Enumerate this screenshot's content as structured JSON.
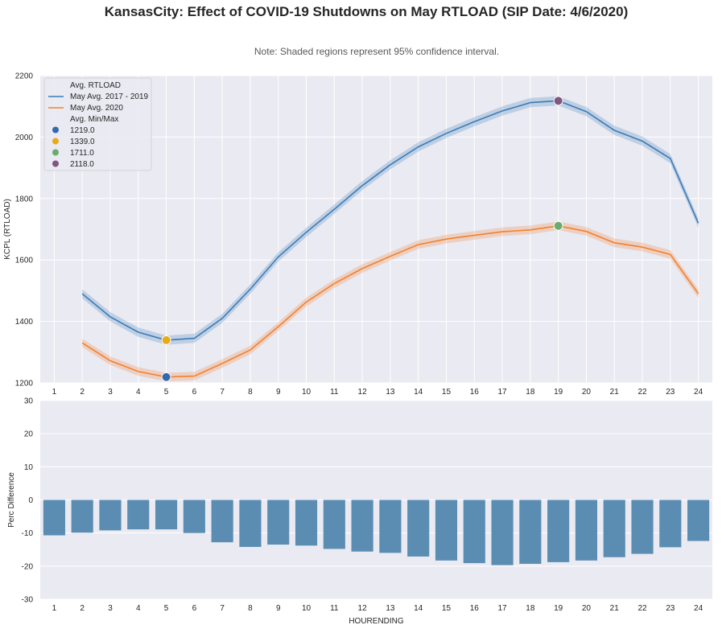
{
  "figure": {
    "title": "KansasCity: Effect of COVID-19 Shutdowns on May RTLOAD (SIP Date: 4/6/2020)",
    "note": "Note: Shaded regions represent 95% confidence interval."
  },
  "colors": {
    "background": "#eaeaf2",
    "grid": "#ffffff",
    "series_2017_2019": "#3a7cb8",
    "series_2020": "#f2812e",
    "bars": "#5b8db3",
    "min_2020": "#3569ab",
    "min_2017_2019": "#e8ab17",
    "max_2020": "#6aab6e",
    "max_2017_2019": "#7f577f"
  },
  "chart_data": [
    {
      "type": "line",
      "x": [
        2,
        3,
        4,
        5,
        6,
        7,
        8,
        9,
        10,
        11,
        12,
        13,
        14,
        15,
        16,
        17,
        18,
        19,
        20,
        21,
        22,
        23,
        24
      ],
      "series": [
        {
          "name": "May Avg. 2017 - 2019",
          "values": [
            1490,
            1415,
            1365,
            1339,
            1345,
            1410,
            1505,
            1610,
            1690,
            1765,
            1842,
            1910,
            1968,
            2012,
            2050,
            2085,
            2112,
            2118,
            2083,
            2022,
            1987,
            1930,
            1720
          ],
          "ci_halfwidth": 15
        },
        {
          "name": "May Avg. 2020",
          "values": [
            1330,
            1272,
            1237,
            1219,
            1222,
            1263,
            1307,
            1383,
            1463,
            1523,
            1572,
            1612,
            1650,
            1668,
            1680,
            1692,
            1698,
            1711,
            1693,
            1656,
            1642,
            1618,
            1490
          ],
          "ci_halfwidth": 14
        }
      ],
      "markers": [
        {
          "label": "1219.0",
          "x": 5,
          "y": 1219
        },
        {
          "label": "1339.0",
          "x": 5,
          "y": 1339
        },
        {
          "label": "1711.0",
          "x": 19,
          "y": 1711
        },
        {
          "label": "2118.0",
          "x": 19,
          "y": 2118
        }
      ],
      "xlabel": "",
      "ylabel": "KCPL (RTLOAD)",
      "xticks": [
        "1",
        "2",
        "3",
        "4",
        "5",
        "6",
        "7",
        "8",
        "9",
        "10",
        "11",
        "12",
        "13",
        "14",
        "15",
        "16",
        "17",
        "18",
        "19",
        "20",
        "21",
        "22",
        "23",
        "24"
      ],
      "yticks": [
        "1200",
        "1400",
        "1600",
        "1800",
        "2000",
        "2200"
      ],
      "xlim": [
        0.5,
        24.5
      ],
      "ylim": [
        1200,
        2200
      ],
      "grid": true,
      "legend_placement": "top-left",
      "legend": {
        "title_lines": "Avg. RTLOAD",
        "title_markers": "Avg. Min/Max",
        "lines": [
          "May Avg. 2017 - 2019",
          "May Avg. 2020"
        ],
        "markers": [
          "1219.0",
          "1339.0",
          "1711.0",
          "2118.0"
        ]
      }
    },
    {
      "type": "bar",
      "categories": [
        "1",
        "2",
        "3",
        "4",
        "5",
        "6",
        "7",
        "8",
        "9",
        "10",
        "11",
        "12",
        "13",
        "14",
        "15",
        "16",
        "17",
        "18",
        "19",
        "20",
        "21",
        "22",
        "23",
        "24"
      ],
      "values": [
        -10.7,
        -9.9,
        -9.2,
        -8.9,
        -8.9,
        -10.0,
        -12.8,
        -14.2,
        -13.5,
        -13.8,
        -14.8,
        -15.6,
        -16.0,
        -17.1,
        -18.3,
        -19.1,
        -19.7,
        -19.3,
        -18.8,
        -18.3,
        -17.3,
        -16.3,
        -14.3,
        -12.4
      ],
      "xlabel": "HOURENDING",
      "ylabel": "Perc Difference",
      "yticks": [
        "-30",
        "-20",
        "-10",
        "0",
        "10",
        "20",
        "30"
      ],
      "ylim": [
        -30,
        30
      ],
      "grid": true
    }
  ]
}
